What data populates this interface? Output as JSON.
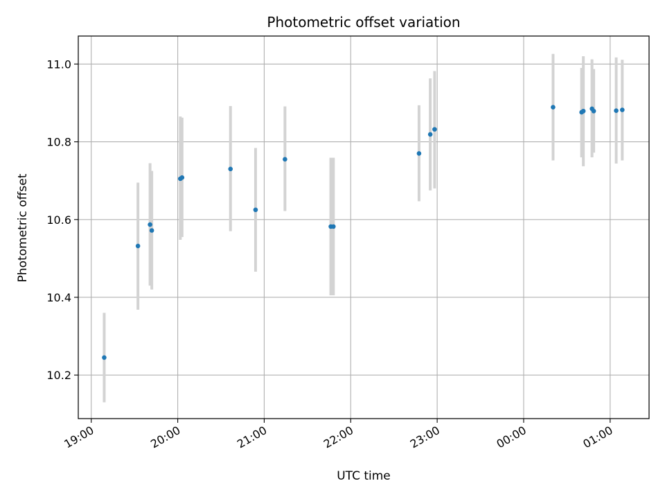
{
  "chart_data": {
    "type": "scatter",
    "title": "Photometric offset variation",
    "xlabel": "UTC time",
    "ylabel": "Photometric offset",
    "x_unit": "hours (UTC, values past 24 are after midnight)",
    "xlim": [
      18.85,
      25.45
    ],
    "ylim": [
      10.088,
      11.072
    ],
    "x_ticks": [
      {
        "value": 19,
        "label": "19:00"
      },
      {
        "value": 20,
        "label": "20:00"
      },
      {
        "value": 21,
        "label": "21:00"
      },
      {
        "value": 22,
        "label": "22:00"
      },
      {
        "value": 23,
        "label": "23:00"
      },
      {
        "value": 24,
        "label": "00:00"
      },
      {
        "value": 25,
        "label": "01:00"
      }
    ],
    "y_ticks": [
      {
        "value": 10.2,
        "label": "10.2"
      },
      {
        "value": 10.4,
        "label": "10.4"
      },
      {
        "value": 10.6,
        "label": "10.6"
      },
      {
        "value": 10.8,
        "label": "10.8"
      },
      {
        "value": 11.0,
        "label": "11.0"
      }
    ],
    "grid": true,
    "colors": {
      "point": "#1f77b4",
      "errorbar": "#d3d3d3",
      "grid": "#b0b0b0",
      "axes": "#000000"
    },
    "points": [
      {
        "x": 19.15,
        "y": 10.245,
        "ylo": 10.13,
        "yhi": 10.36
      },
      {
        "x": 19.54,
        "y": 10.532,
        "ylo": 10.368,
        "yhi": 10.695
      },
      {
        "x": 19.68,
        "y": 10.587,
        "ylo": 10.43,
        "yhi": 10.745
      },
      {
        "x": 19.7,
        "y": 10.572,
        "ylo": 10.42,
        "yhi": 10.725
      },
      {
        "x": 20.03,
        "y": 10.705,
        "ylo": 10.548,
        "yhi": 10.865
      },
      {
        "x": 20.05,
        "y": 10.708,
        "ylo": 10.555,
        "yhi": 10.862
      },
      {
        "x": 20.61,
        "y": 10.73,
        "ylo": 10.57,
        "yhi": 10.892
      },
      {
        "x": 20.9,
        "y": 10.625,
        "ylo": 10.466,
        "yhi": 10.784
      },
      {
        "x": 21.24,
        "y": 10.755,
        "ylo": 10.622,
        "yhi": 10.891
      },
      {
        "x": 21.77,
        "y": 10.582,
        "ylo": 10.405,
        "yhi": 10.759
      },
      {
        "x": 21.8,
        "y": 10.582,
        "ylo": 10.405,
        "yhi": 10.759
      },
      {
        "x": 22.79,
        "y": 10.77,
        "ylo": 10.647,
        "yhi": 10.894
      },
      {
        "x": 22.92,
        "y": 10.819,
        "ylo": 10.675,
        "yhi": 10.963
      },
      {
        "x": 22.97,
        "y": 10.832,
        "ylo": 10.68,
        "yhi": 10.982
      },
      {
        "x": 24.34,
        "y": 10.889,
        "ylo": 10.752,
        "yhi": 11.026
      },
      {
        "x": 24.67,
        "y": 10.876,
        "ylo": 10.76,
        "yhi": 10.99
      },
      {
        "x": 24.69,
        "y": 10.879,
        "ylo": 10.737,
        "yhi": 11.02
      },
      {
        "x": 24.79,
        "y": 10.885,
        "ylo": 10.76,
        "yhi": 11.012
      },
      {
        "x": 24.81,
        "y": 10.879,
        "ylo": 10.772,
        "yhi": 10.987
      },
      {
        "x": 25.07,
        "y": 10.88,
        "ylo": 10.744,
        "yhi": 11.017
      },
      {
        "x": 25.14,
        "y": 10.882,
        "ylo": 10.752,
        "yhi": 11.011
      }
    ]
  }
}
